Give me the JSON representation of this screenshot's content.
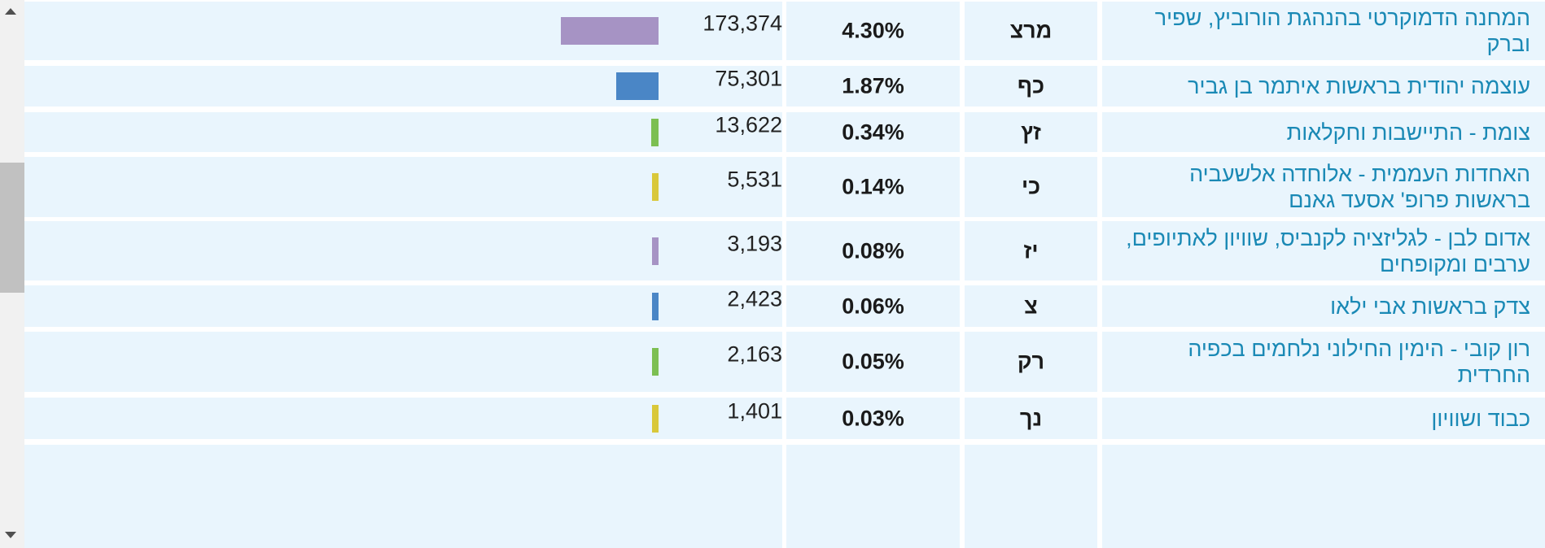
{
  "rows": [
    {
      "name": "המחנה הדמוקרטי בהנהגת הורוביץ, שפיר וברק",
      "symbol": "מרצ",
      "percent": "4.30%",
      "votes": "173,374",
      "bar_color": "#a693c4",
      "bar_value": 173374
    },
    {
      "name": "עוצמה יהודית בראשות איתמר בן גביר",
      "symbol": "כף",
      "percent": "1.87%",
      "votes": "75,301",
      "bar_color": "#4a86c6",
      "bar_value": 75301
    },
    {
      "name": "צומת - התיישבות וחקלאות",
      "symbol": "זץ",
      "percent": "0.34%",
      "votes": "13,622",
      "bar_color": "#7cbf52",
      "bar_value": 13622
    },
    {
      "name": "האחדות העממית - אלוחדה אלשעביה בראשות פרופ' אסעד גאנם",
      "symbol": "כי",
      "percent": "0.14%",
      "votes": "5,531",
      "bar_color": "#d9c83a",
      "bar_value": 5531
    },
    {
      "name": "אדום לבן - לגליזציה לקנביס, שוויון לאתיופים, ערבים ומקופחים",
      "symbol": "יז",
      "percent": "0.08%",
      "votes": "3,193",
      "bar_color": "#a693c4",
      "bar_value": 3193
    },
    {
      "name": "צדק בראשות אבי ילאו",
      "symbol": "צ",
      "percent": "0.06%",
      "votes": "2,423",
      "bar_color": "#4a86c6",
      "bar_value": 2423
    },
    {
      "name": "רון קובי - הימין החילוני נלחמים בכפיה החרדית",
      "symbol": "רק",
      "percent": "0.05%",
      "votes": "2,163",
      "bar_color": "#7cbf52",
      "bar_value": 2163
    },
    {
      "name": "כבוד ושוויון",
      "symbol": "נך",
      "percent": "0.03%",
      "votes": "1,401",
      "bar_color": "#d9c83a",
      "bar_value": 1401
    }
  ]
}
